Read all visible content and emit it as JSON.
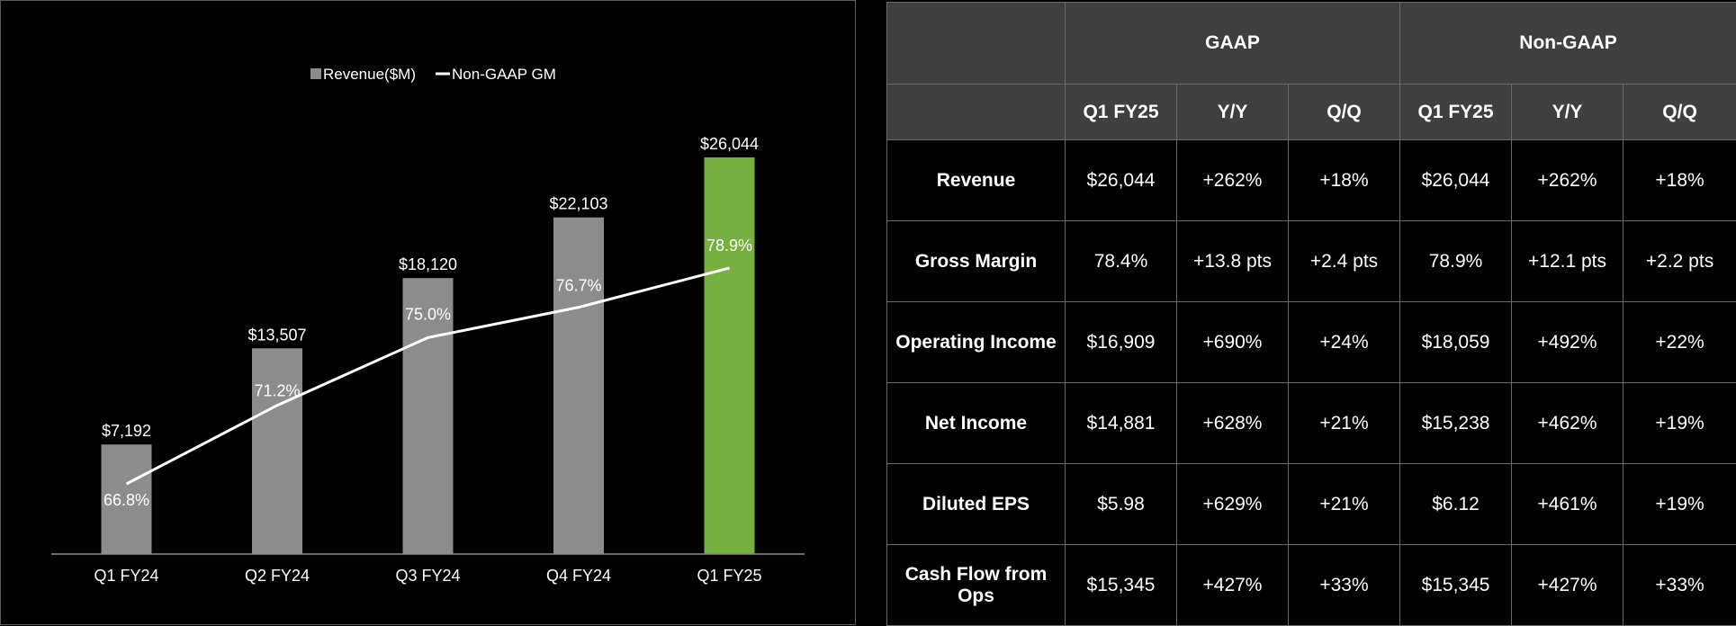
{
  "chart_data": {
    "type": "bar",
    "categories": [
      "Q1 FY24",
      "Q2 FY24",
      "Q3 FY24",
      "Q4 FY24",
      "Q1 FY25"
    ],
    "series": [
      {
        "name": "Revenue($M)",
        "type": "bar",
        "values": [
          7192,
          13507,
          18120,
          22103,
          26044
        ],
        "value_labels": [
          "$7,192",
          "$13,507",
          "$18,120",
          "$22,103",
          "$26,044"
        ],
        "color": "#8c8c8c",
        "highlight_color": "#76b041"
      },
      {
        "name": "Non-GAAP GM",
        "type": "line",
        "values": [
          66.8,
          71.2,
          75.0,
          76.7,
          78.9
        ],
        "value_labels": [
          "66.8%",
          "71.2%",
          "75.0%",
          "76.7%",
          "78.9%"
        ],
        "color": "#ffffff"
      }
    ],
    "ylim": [
      0,
      28000
    ],
    "legend_position": "top-center",
    "grid": false
  },
  "table": {
    "group_headers": [
      "GAAP",
      "Non-GAAP"
    ],
    "sub_headers": [
      "Q1 FY25",
      "Y/Y",
      "Q/Q",
      "Q1 FY25",
      "Y/Y",
      "Q/Q"
    ],
    "rows": [
      {
        "label": "Revenue",
        "cells": [
          "$26,044",
          "+262%",
          "+18%",
          "$26,044",
          "+262%",
          "+18%"
        ]
      },
      {
        "label": "Gross Margin",
        "cells": [
          "78.4%",
          "+13.8 pts",
          "+2.4 pts",
          "78.9%",
          "+12.1 pts",
          "+2.2 pts"
        ]
      },
      {
        "label": "Operating Income",
        "cells": [
          "$16,909",
          "+690%",
          "+24%",
          "$18,059",
          "+492%",
          "+22%"
        ]
      },
      {
        "label": "Net Income",
        "cells": [
          "$14,881",
          "+628%",
          "+21%",
          "$15,238",
          "+462%",
          "+19%"
        ]
      },
      {
        "label": "Diluted EPS",
        "cells": [
          "$5.98",
          "+629%",
          "+21%",
          "$6.12",
          "+461%",
          "+19%"
        ]
      },
      {
        "label": "Cash Flow from Ops",
        "cells": [
          "$15,345",
          "+427%",
          "+33%",
          "$15,345",
          "+427%",
          "+33%"
        ]
      }
    ]
  }
}
